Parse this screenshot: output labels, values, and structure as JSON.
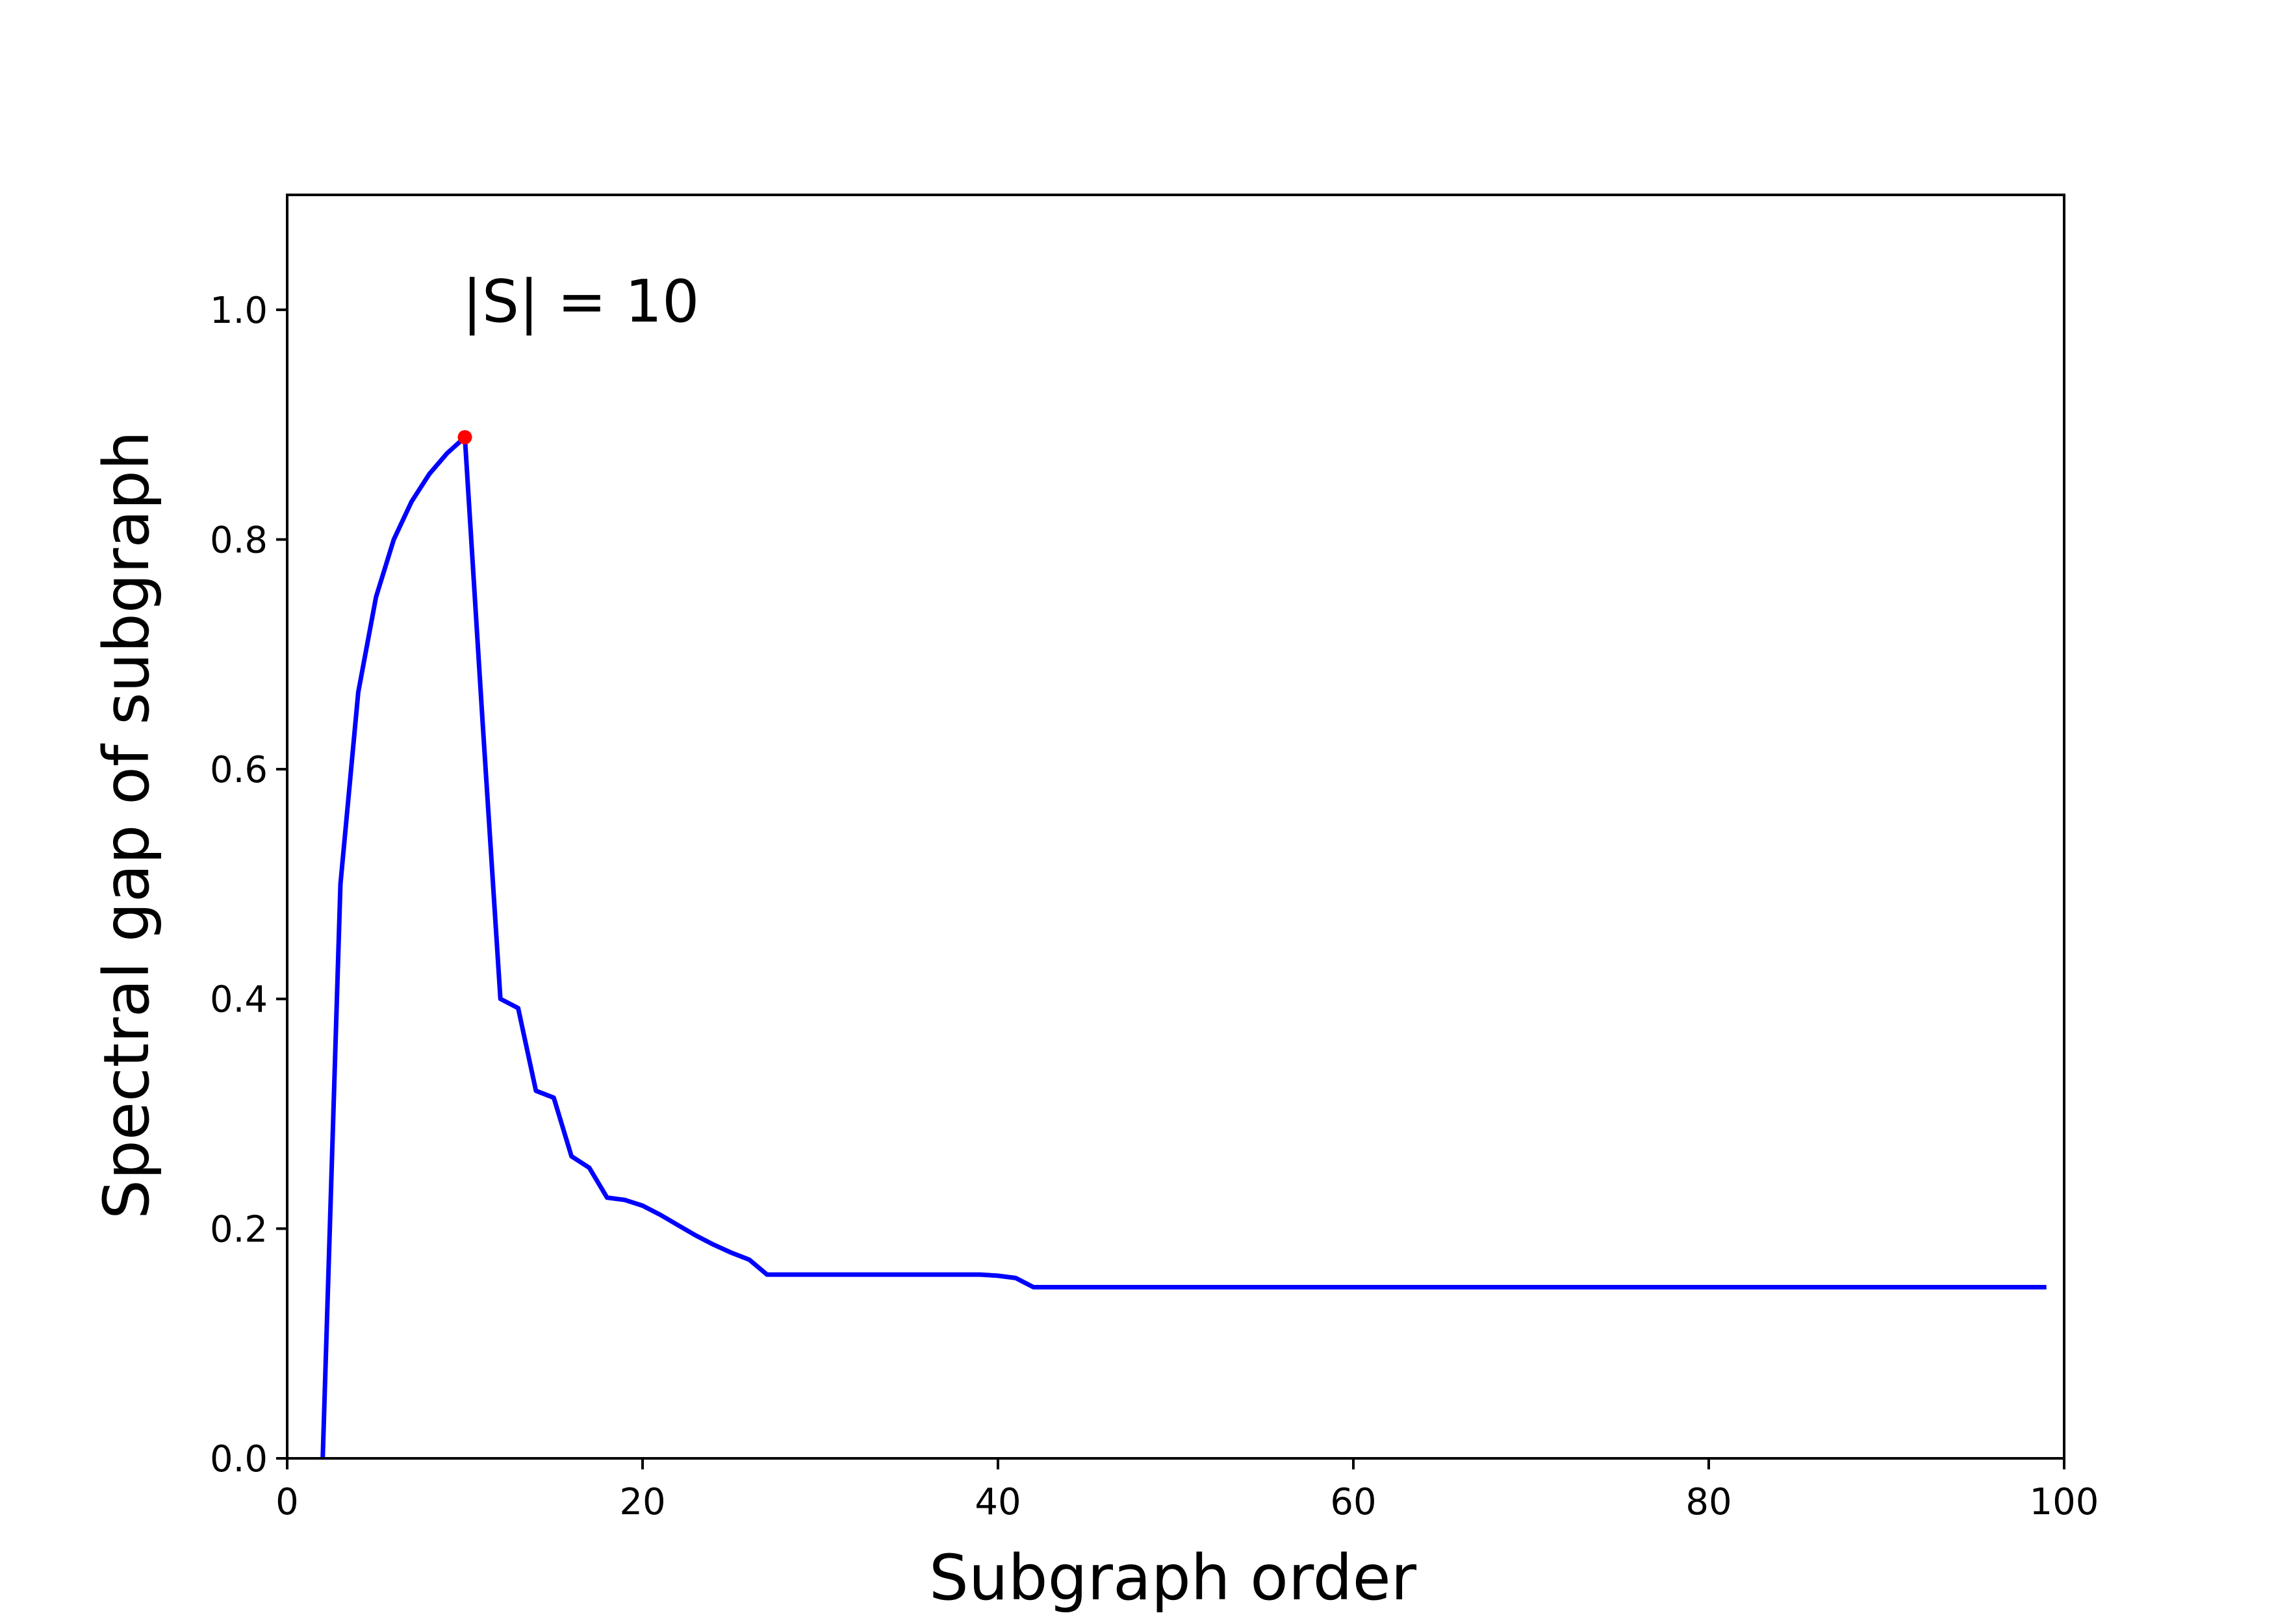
{
  "chart_data": {
    "type": "line",
    "xlabel": "Subgraph order",
    "ylabel": "Spectral gap of subgraph",
    "xlim": [
      0,
      100
    ],
    "ylim": [
      0,
      1.1
    ],
    "x_ticks": [
      "0",
      "20",
      "40",
      "60",
      "80",
      "100"
    ],
    "y_ticks": [
      "0.0",
      "0.2",
      "0.4",
      "0.6",
      "0.8",
      "1.0"
    ],
    "grid": false,
    "annotation": {
      "text": "|S| = 10",
      "x": 10,
      "y": 1.0
    },
    "series": [
      {
        "color": "#0000ff",
        "x": [
          2,
          3,
          4,
          5,
          6,
          7,
          8,
          9,
          10,
          11,
          12,
          13,
          14,
          15,
          16,
          17,
          18,
          19,
          20,
          21,
          22,
          23,
          24,
          25,
          26,
          27,
          28,
          29,
          30,
          31,
          32,
          33,
          34,
          35,
          36,
          37,
          38,
          39,
          40,
          41,
          42,
          43,
          44,
          45,
          46,
          47,
          48,
          49,
          50,
          55,
          60,
          65,
          70,
          75,
          80,
          85,
          90,
          95,
          99
        ],
        "y": [
          0.0,
          0.5,
          0.667,
          0.75,
          0.8,
          0.833,
          0.857,
          0.875,
          0.889,
          0.64,
          0.4,
          0.392,
          0.32,
          0.314,
          0.263,
          0.253,
          0.227,
          0.225,
          0.22,
          0.212,
          0.203,
          0.194,
          0.186,
          0.179,
          0.173,
          0.16,
          0.16,
          0.16,
          0.16,
          0.16,
          0.16,
          0.16,
          0.16,
          0.16,
          0.16,
          0.16,
          0.16,
          0.16,
          0.159,
          0.157,
          0.149,
          0.149,
          0.149,
          0.149,
          0.149,
          0.149,
          0.149,
          0.149,
          0.149,
          0.149,
          0.149,
          0.149,
          0.149,
          0.149,
          0.149,
          0.149,
          0.149,
          0.149,
          0.149
        ]
      }
    ],
    "highlight_point": {
      "x": 10,
      "y": 0.889,
      "color": "#ff0000"
    }
  }
}
